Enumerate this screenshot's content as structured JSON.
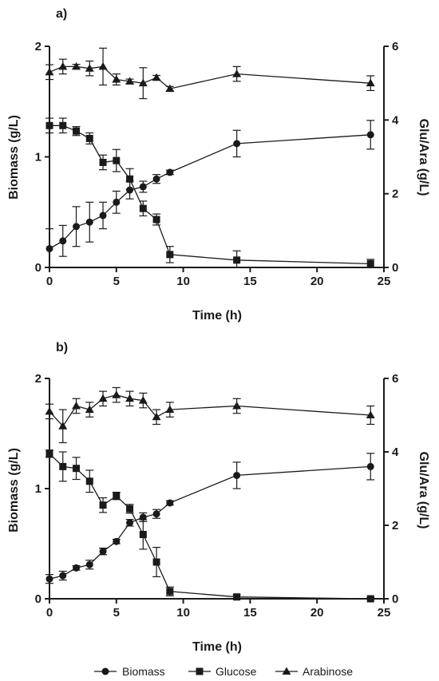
{
  "legend": {
    "biomass": "Biomass",
    "glucose": "Glucose",
    "arabinose": "Arabinose"
  },
  "colors": {
    "ink": "#1a1a1a"
  },
  "chart_data": [
    {
      "type": "line",
      "panel_label": "a)",
      "xlabel": "Time (h)",
      "ylabel": "Biomass (g/L)",
      "y2label": "Glu/Ara (g/L)",
      "xlim": [
        0,
        25
      ],
      "ylim": [
        0,
        2
      ],
      "y2lim": [
        0,
        6
      ],
      "xticks": [
        "0",
        "5",
        "10",
        "15",
        "20",
        "25"
      ],
      "yticks": [
        "0",
        "1",
        "2"
      ],
      "y2ticks": [
        "0",
        "2",
        "4",
        "6"
      ],
      "grid": false,
      "series": [
        {
          "name": "Biomass",
          "marker": "circle",
          "axis": "left",
          "x": [
            0,
            1,
            2,
            3,
            4,
            5,
            6,
            7,
            8,
            9,
            14,
            24
          ],
          "y": [
            0.17,
            0.24,
            0.37,
            0.41,
            0.47,
            0.59,
            0.7,
            0.73,
            0.8,
            0.86,
            1.12,
            1.2
          ],
          "error": [
            0.18,
            0.14,
            0.18,
            0.18,
            0.12,
            0.1,
            0.08,
            0.05,
            0.04,
            0.02,
            0.12,
            0.13
          ]
        },
        {
          "name": "Glucose",
          "marker": "square",
          "axis": "right",
          "x": [
            0,
            1,
            2,
            3,
            4,
            5,
            6,
            7,
            8,
            9,
            14,
            24
          ],
          "y": [
            3.85,
            3.85,
            3.7,
            3.5,
            2.85,
            2.9,
            2.4,
            1.6,
            1.3,
            0.35,
            0.2,
            0.1
          ],
          "error": [
            0.2,
            0.2,
            0.12,
            0.15,
            0.2,
            0.3,
            0.28,
            0.2,
            0.15,
            0.22,
            0.25,
            0.12
          ]
        },
        {
          "name": "Arabinose",
          "marker": "triangle",
          "axis": "right",
          "x": [
            0,
            1,
            2,
            3,
            4,
            5,
            6,
            7,
            8,
            9,
            14,
            24
          ],
          "y": [
            5.3,
            5.45,
            5.45,
            5.4,
            5.45,
            5.1,
            5.05,
            5.0,
            5.15,
            4.85,
            5.25,
            5.0
          ],
          "error": [
            0.2,
            0.2,
            0.06,
            0.2,
            0.5,
            0.15,
            0.06,
            0.42,
            0.06,
            0.06,
            0.2,
            0.2
          ]
        }
      ]
    },
    {
      "type": "line",
      "panel_label": "b)",
      "xlabel": "Time (h)",
      "ylabel": "Biomass (g/L)",
      "y2label": "Glu/Ara (g/L)",
      "xlim": [
        0,
        25
      ],
      "ylim": [
        0,
        2
      ],
      "y2lim": [
        0,
        6
      ],
      "xticks": [
        "0",
        "5",
        "10",
        "15",
        "20",
        "25"
      ],
      "yticks": [
        "0",
        "1",
        "2"
      ],
      "y2ticks": [
        "0",
        "2",
        "4",
        "6"
      ],
      "grid": false,
      "series": [
        {
          "name": "Biomass",
          "marker": "circle",
          "axis": "left",
          "x": [
            0,
            1,
            2,
            3,
            4,
            5,
            6,
            7,
            8,
            9,
            14,
            24
          ],
          "y": [
            0.18,
            0.21,
            0.28,
            0.31,
            0.43,
            0.52,
            0.69,
            0.74,
            0.77,
            0.87,
            1.12,
            1.2
          ],
          "error": [
            0.04,
            0.04,
            0.02,
            0.04,
            0.03,
            0.02,
            0.03,
            0.04,
            0.04,
            0.02,
            0.12,
            0.12
          ]
        },
        {
          "name": "Glucose",
          "marker": "square",
          "axis": "right",
          "x": [
            0,
            1,
            2,
            3,
            4,
            5,
            6,
            7,
            8,
            9,
            14,
            24
          ],
          "y": [
            3.95,
            3.6,
            3.55,
            3.2,
            2.55,
            2.8,
            2.45,
            1.75,
            1.0,
            0.2,
            0.05,
            0.0
          ],
          "error": [
            0.1,
            0.4,
            0.3,
            0.3,
            0.2,
            0.1,
            0.12,
            0.4,
            0.4,
            0.12,
            0.06,
            0.03
          ]
        },
        {
          "name": "Arabinose",
          "marker": "triangle",
          "axis": "right",
          "x": [
            0,
            1,
            2,
            3,
            4,
            5,
            6,
            7,
            8,
            9,
            14,
            24
          ],
          "y": [
            5.1,
            4.7,
            5.25,
            5.15,
            5.45,
            5.55,
            5.45,
            5.4,
            4.95,
            5.15,
            5.25,
            5.0
          ],
          "error": [
            0.2,
            0.45,
            0.2,
            0.2,
            0.2,
            0.2,
            0.2,
            0.2,
            0.2,
            0.2,
            0.2,
            0.25
          ]
        }
      ]
    }
  ]
}
